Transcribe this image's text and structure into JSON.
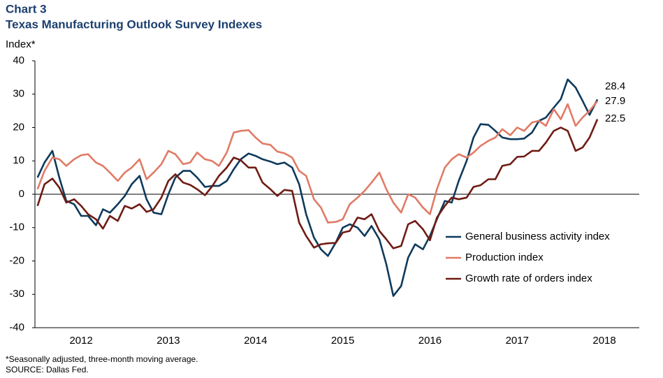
{
  "chart_data": {
    "type": "line",
    "title": "Chart 3",
    "subtitle": "Texas Manufacturing Outlook Survey Indexes",
    "y_label": "Index*",
    "notes": [
      "*Seasonally adjusted, three-month moving average.",
      "SOURCE: Dallas Fed."
    ],
    "x": [
      2012.0,
      2012.08,
      2012.17,
      2012.25,
      2012.33,
      2012.42,
      2012.5,
      2012.58,
      2012.67,
      2012.75,
      2012.83,
      2012.92,
      2013.0,
      2013.08,
      2013.17,
      2013.25,
      2013.33,
      2013.42,
      2013.5,
      2013.58,
      2013.67,
      2013.75,
      2013.83,
      2013.92,
      2014.0,
      2014.08,
      2014.17,
      2014.25,
      2014.33,
      2014.42,
      2014.5,
      2014.58,
      2014.67,
      2014.75,
      2014.83,
      2014.92,
      2015.0,
      2015.08,
      2015.17,
      2015.25,
      2015.33,
      2015.42,
      2015.5,
      2015.58,
      2015.67,
      2015.75,
      2015.83,
      2015.92,
      2016.0,
      2016.08,
      2016.17,
      2016.25,
      2016.33,
      2016.42,
      2016.5,
      2016.58,
      2016.67,
      2016.75,
      2016.83,
      2016.92,
      2017.0,
      2017.08,
      2017.17,
      2017.25,
      2017.33,
      2017.42,
      2017.5,
      2017.58,
      2017.67,
      2017.75,
      2017.83,
      2017.92,
      2018.0,
      2018.08,
      2018.17,
      2018.25,
      2018.33,
      2018.42
    ],
    "xlim": [
      2011.97,
      2018.9
    ],
    "xticks": [
      {
        "value": 2012.5,
        "label": "2012"
      },
      {
        "value": 2013.5,
        "label": "2013"
      },
      {
        "value": 2014.5,
        "label": "2014"
      },
      {
        "value": 2015.5,
        "label": "2015"
      },
      {
        "value": 2016.5,
        "label": "2016"
      },
      {
        "value": 2017.5,
        "label": "2017"
      },
      {
        "value": 2018.5,
        "label": "2018"
      }
    ],
    "ylim": [
      -40,
      40
    ],
    "yticks": [
      -40,
      -30,
      -20,
      -10,
      0,
      10,
      20,
      30,
      40
    ],
    "series": [
      {
        "name": "General business activity index",
        "color": "#0e3a5c",
        "values": [
          5,
          9.5,
          13,
          5,
          -2,
          -3,
          -6.5,
          -6.5,
          -9.3,
          -4.5,
          -5.5,
          -3,
          -0.5,
          3,
          5.5,
          -1.5,
          -5.5,
          -6,
          0,
          5,
          7,
          7,
          5,
          2.2,
          2.5,
          2.5,
          4,
          7.5,
          10.5,
          12.2,
          11.5,
          10.5,
          9.8,
          9,
          9.5,
          8,
          3,
          -6,
          -13,
          -16.5,
          -18.5,
          -14.5,
          -10,
          -9,
          -10,
          -12.5,
          -9.5,
          -13.5,
          -21,
          -30.5,
          -27.5,
          -19,
          -15,
          -16.5,
          -12.5,
          -7.5,
          -2,
          -2.5,
          4,
          10,
          17,
          21,
          20.8,
          19,
          17,
          16.5,
          16.5,
          16.7,
          18.5,
          22,
          23,
          26,
          28.5,
          34.4,
          32,
          28,
          23.8,
          28.4
        ]
      },
      {
        "name": "Production index",
        "color": "#e07b66",
        "values": [
          1.5,
          7,
          11,
          10.5,
          8.5,
          10.5,
          11.7,
          12,
          9.5,
          8.5,
          6.5,
          4,
          6.5,
          8,
          10.5,
          4.5,
          6.5,
          9,
          13,
          12,
          9,
          9.5,
          12.5,
          10.5,
          10,
          8.5,
          12.5,
          18.5,
          19,
          19.2,
          17,
          15.2,
          14.8,
          12.8,
          12.3,
          11,
          7,
          5.5,
          -1.5,
          -4,
          -8.5,
          -8.3,
          -7.5,
          -3,
          -1,
          1,
          3.5,
          6.5,
          1.5,
          -2.5,
          -5.5,
          0,
          -1,
          -4,
          -6,
          1.5,
          8,
          10.5,
          12,
          11,
          12.5,
          14.5,
          16,
          17,
          19.5,
          17.7,
          20,
          19,
          21.5,
          22,
          20.5,
          25.5,
          22.5,
          27,
          20.5,
          23,
          25,
          27.9
        ]
      },
      {
        "name": "Growth rate of orders index",
        "color": "#6e1c14",
        "values": [
          -3.5,
          3,
          4.7,
          2,
          -2.5,
          -1.5,
          -3.5,
          -6,
          -7.5,
          -10.3,
          -6.5,
          -8,
          -3.5,
          -4.3,
          -3,
          -5.3,
          -4.5,
          -1,
          4,
          6,
          3.5,
          2.8,
          1.5,
          -0.3,
          2.3,
          5.5,
          8,
          11,
          10.2,
          8,
          8,
          3.5,
          1.5,
          -0.5,
          1.3,
          1,
          -8.5,
          -12.5,
          -16,
          -15,
          -14.7,
          -14.6,
          -11.5,
          -11,
          -7,
          -7.5,
          -6,
          -11,
          -13.5,
          -16.2,
          -15.5,
          -9,
          -8,
          -10.5,
          -13.8,
          -7,
          -3.5,
          -1,
          -1.5,
          -1,
          2.2,
          2.7,
          4.5,
          4.5,
          8.5,
          9,
          11.2,
          11.3,
          13,
          13,
          15.5,
          19,
          20,
          19,
          13,
          14,
          17,
          22.5
        ]
      }
    ],
    "legend": "right",
    "end_labels": true
  }
}
